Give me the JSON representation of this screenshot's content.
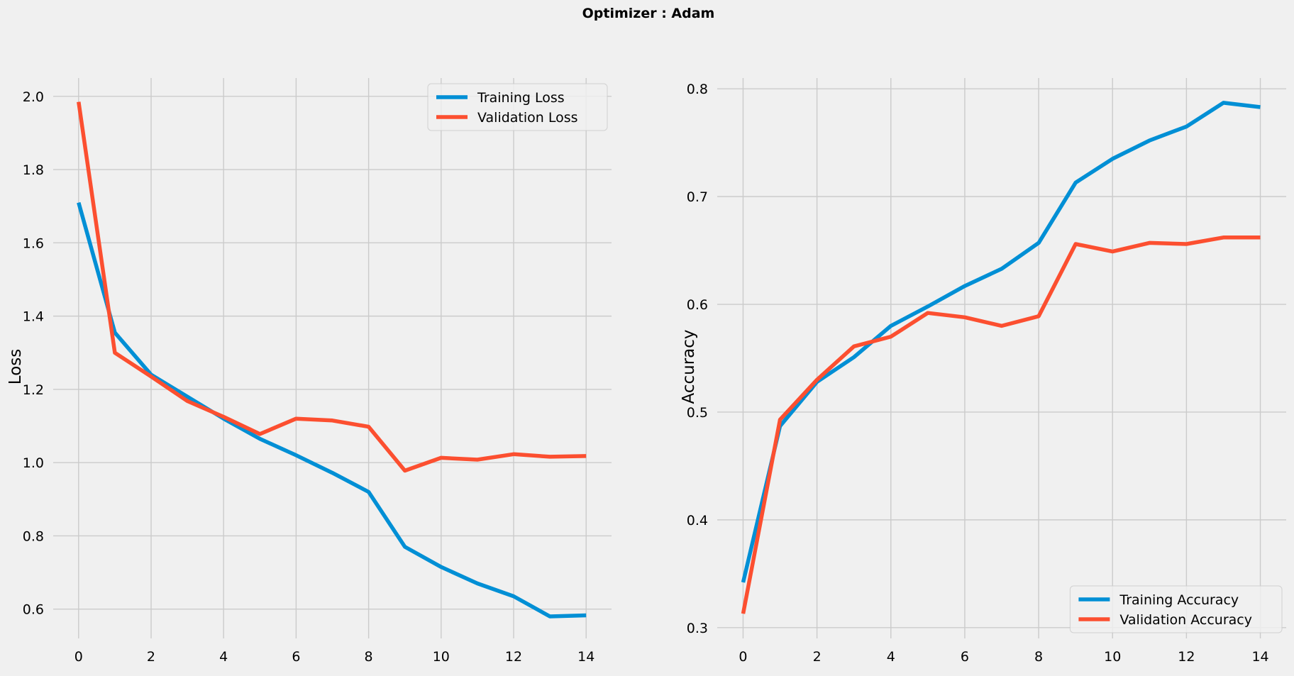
{
  "figure": {
    "title": "Optimizer : Adam"
  },
  "chart_data": [
    {
      "type": "line",
      "title": "",
      "xlabel": "",
      "ylabel": "Loss",
      "xlim": [
        -0.7,
        14.7
      ],
      "ylim": [
        0.52,
        2.05
      ],
      "xticks": [
        0,
        2,
        4,
        6,
        8,
        10,
        12,
        14
      ],
      "xtick_labels": [
        "0",
        "2",
        "4",
        "6",
        "8",
        "10",
        "12",
        "14"
      ],
      "yticks": [
        0.6,
        0.8,
        1.0,
        1.2,
        1.4,
        1.6,
        1.8,
        2.0
      ],
      "ytick_labels": [
        "0.6",
        "0.8",
        "1.0",
        "1.2",
        "1.4",
        "1.6",
        "1.8",
        "2.0"
      ],
      "grid": true,
      "legend": "top-right",
      "x": [
        0,
        1,
        2,
        3,
        4,
        5,
        6,
        7,
        8,
        9,
        10,
        11,
        12,
        13,
        14
      ],
      "series": [
        {
          "name": "Training Loss",
          "color": "#008fd5",
          "values": [
            1.71,
            1.355,
            1.24,
            1.18,
            1.12,
            1.065,
            1.02,
            0.972,
            0.92,
            0.77,
            0.715,
            0.67,
            0.635,
            0.58,
            0.583
          ]
        },
        {
          "name": "Validation Loss",
          "color": "#fc4f30",
          "values": [
            1.985,
            1.3,
            1.235,
            1.168,
            1.125,
            1.078,
            1.12,
            1.115,
            1.098,
            0.978,
            1.013,
            1.008,
            1.023,
            1.016,
            1.018
          ]
        }
      ]
    },
    {
      "type": "line",
      "title": "",
      "xlabel": "",
      "ylabel": "Accuracy",
      "xlim": [
        -0.7,
        14.7
      ],
      "ylim": [
        0.29,
        0.81
      ],
      "xticks": [
        0,
        2,
        4,
        6,
        8,
        10,
        12,
        14
      ],
      "xtick_labels": [
        "0",
        "2",
        "4",
        "6",
        "8",
        "10",
        "12",
        "14"
      ],
      "yticks": [
        0.3,
        0.4,
        0.5,
        0.6,
        0.7,
        0.8
      ],
      "ytick_labels": [
        "0.3",
        "0.4",
        "0.5",
        "0.6",
        "0.7",
        "0.8"
      ],
      "grid": true,
      "legend": "bottom-right",
      "x": [
        0,
        1,
        2,
        3,
        4,
        5,
        6,
        7,
        8,
        9,
        10,
        11,
        12,
        13,
        14
      ],
      "series": [
        {
          "name": "Training Accuracy",
          "color": "#008fd5",
          "values": [
            0.342,
            0.487,
            0.528,
            0.551,
            0.58,
            0.598,
            0.617,
            0.633,
            0.657,
            0.713,
            0.735,
            0.752,
            0.765,
            0.787,
            0.783
          ]
        },
        {
          "name": "Validation Accuracy",
          "color": "#fc4f30",
          "values": [
            0.313,
            0.493,
            0.53,
            0.561,
            0.57,
            0.592,
            0.588,
            0.58,
            0.589,
            0.656,
            0.649,
            0.657,
            0.656,
            0.662,
            0.662
          ]
        }
      ]
    }
  ]
}
